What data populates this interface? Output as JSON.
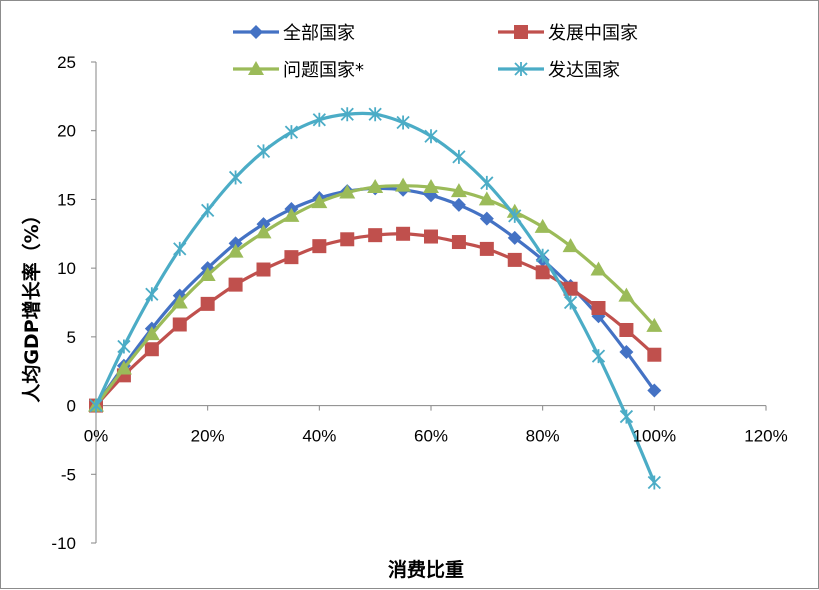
{
  "chart_data": {
    "type": "line",
    "xlabel": "消费比重",
    "ylabel": "人均GDP增长率（%）",
    "xlim": [
      0,
      1.2
    ],
    "ylim": [
      -10,
      25
    ],
    "x_ticks": [
      "0%",
      "20%",
      "40%",
      "60%",
      "80%",
      "100%",
      "120%"
    ],
    "x_tick_values": [
      0,
      0.2,
      0.4,
      0.6,
      0.8,
      1.0,
      1.2
    ],
    "y_ticks": [
      "25",
      "20",
      "15",
      "10",
      "5",
      "0",
      "-5",
      "-10"
    ],
    "y_tick_values": [
      25,
      20,
      15,
      10,
      5,
      0,
      -5,
      -10
    ],
    "grid": false,
    "legend_position": "top",
    "x": [
      0,
      0.05,
      0.1,
      0.15,
      0.2,
      0.25,
      0.3,
      0.35,
      0.4,
      0.45,
      0.5,
      0.55,
      0.6,
      0.65,
      0.7,
      0.75,
      0.8,
      0.85,
      0.9,
      0.95,
      1.0
    ],
    "series": [
      {
        "name": "全部国家",
        "color": "#4472C4",
        "marker": "diamond",
        "values": [
          0,
          2.9,
          5.6,
          8.0,
          10.0,
          11.8,
          13.2,
          14.3,
          15.1,
          15.6,
          15.8,
          15.7,
          15.3,
          14.6,
          13.6,
          12.2,
          10.6,
          8.7,
          6.5,
          3.9,
          1.1
        ]
      },
      {
        "name": "发展中国家",
        "color": "#C0504D",
        "marker": "square",
        "values": [
          0,
          2.2,
          4.1,
          5.9,
          7.4,
          8.8,
          9.9,
          10.8,
          11.6,
          12.1,
          12.4,
          12.5,
          12.3,
          11.9,
          11.4,
          10.6,
          9.7,
          8.5,
          7.1,
          5.5,
          3.7
        ]
      },
      {
        "name": "问题国家*",
        "color": "#9BBB59",
        "marker": "triangle",
        "values": [
          0,
          2.7,
          5.2,
          7.5,
          9.5,
          11.2,
          12.6,
          13.8,
          14.8,
          15.5,
          15.9,
          16.0,
          15.9,
          15.6,
          15.0,
          14.1,
          13.0,
          11.6,
          9.9,
          8.0,
          5.8
        ]
      },
      {
        "name": "发达国家",
        "color": "#4BACC6",
        "marker": "star",
        "values": [
          0,
          4.3,
          8.1,
          11.4,
          14.2,
          16.6,
          18.5,
          19.9,
          20.8,
          21.2,
          21.2,
          20.6,
          19.6,
          18.1,
          16.2,
          13.8,
          10.9,
          7.5,
          3.6,
          -0.8,
          -5.6
        ]
      }
    ]
  }
}
